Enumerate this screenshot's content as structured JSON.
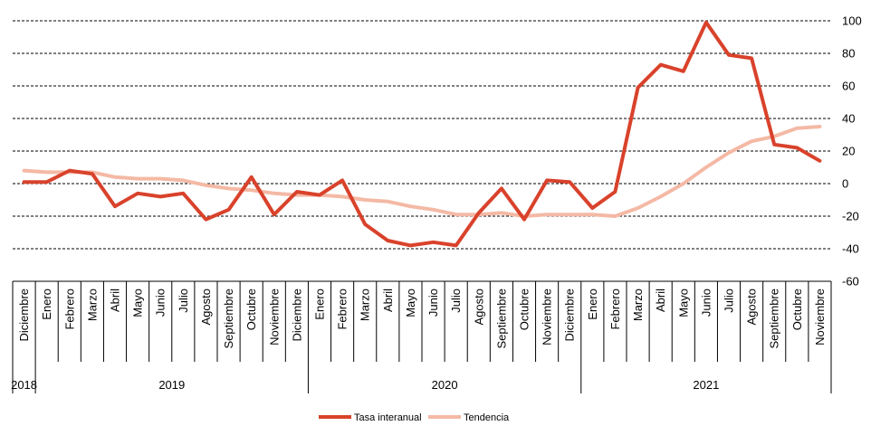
{
  "chart_data": {
    "type": "line",
    "title": "",
    "xlabel": "",
    "ylabel": "",
    "ylim": [
      -60,
      100
    ],
    "yticks": [
      100,
      80,
      60,
      40,
      20,
      0,
      -20,
      -40,
      -60
    ],
    "grid": "horizontal dashed",
    "legend_position": "bottom",
    "years": [
      {
        "label": "2018",
        "months": [
          "Diciembre"
        ]
      },
      {
        "label": "2019",
        "months": [
          "Enero",
          "Febrero",
          "Marzo",
          "Abril",
          "Mayo",
          "Junio",
          "Julio",
          "Agosto",
          "Septiembre",
          "Octubre",
          "Noviembre",
          "Diciembre"
        ]
      },
      {
        "label": "2020",
        "months": [
          "Enero",
          "Febrero",
          "Marzo",
          "Abril",
          "Mayo",
          "Junio",
          "Julio",
          "Agosto",
          "Septiembre",
          "Octubre",
          "Noviembre",
          "Diciembre"
        ]
      },
      {
        "label": "2021",
        "months": [
          "Enero",
          "Febrero",
          "Marzo",
          "Abril",
          "Mayo",
          "Junio",
          "Julio",
          "Agosto",
          "Septiembre",
          "Octubre",
          "Noviembre"
        ]
      }
    ],
    "series": [
      {
        "name": "Tasa interanual",
        "color": "#d9422b",
        "values": [
          1,
          1,
          8,
          6,
          -14,
          -6,
          -8,
          -6,
          -22,
          -16,
          4,
          -19,
          -5,
          -7,
          2,
          -25,
          -35,
          -38,
          -36,
          -38,
          -18,
          -3,
          -22,
          2,
          1,
          -15,
          -5,
          59,
          73,
          69,
          99,
          79,
          77,
          24,
          22,
          14
        ]
      },
      {
        "name": "Tendencia",
        "color": "#f4b9a5",
        "values": [
          8,
          7,
          7,
          7,
          4,
          3,
          3,
          2,
          -1,
          -3,
          -4,
          -6,
          -7,
          -7,
          -8,
          -10,
          -11,
          -14,
          -16,
          -19,
          -19,
          -18,
          -20,
          -19,
          -19,
          -19,
          -20,
          -15,
          -8,
          0,
          10,
          19,
          26,
          29,
          34,
          35
        ]
      }
    ]
  }
}
